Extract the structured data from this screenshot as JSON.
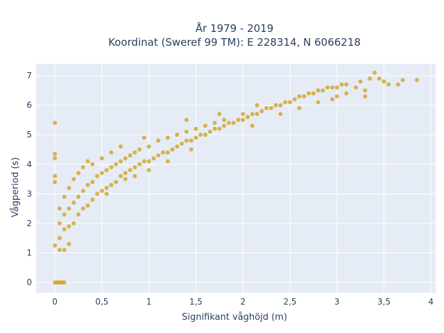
{
  "chart_data": {
    "type": "scatter",
    "title_lines": [
      "År 1979 - 2019",
      "Koordinat (Sweref 99 TM): E 228314, N 6066218"
    ],
    "xlabel": "Signifikant våghöjd (m)",
    "ylabel": "Vågperiod (s)",
    "xlim": [
      -0.2,
      4.05
    ],
    "ylim": [
      -0.35,
      7.4
    ],
    "x_ticks": [
      0,
      0.5,
      1,
      1.5,
      2,
      2.5,
      3,
      3.5,
      4
    ],
    "x_tick_labels": [
      "0",
      "0,5",
      "1",
      "1,5",
      "2",
      "2,5",
      "3",
      "3,5",
      "4"
    ],
    "y_ticks": [
      0,
      1,
      2,
      3,
      4,
      5,
      6,
      7
    ],
    "y_tick_labels": [
      "0",
      "1",
      "2",
      "3",
      "4",
      "5",
      "6",
      "7"
    ],
    "grid": true,
    "background": "#e5ecf6",
    "marker_color": "#d4a21f",
    "points": [
      [
        0.0,
        0.0
      ],
      [
        0.02,
        0.0
      ],
      [
        0.04,
        0.0
      ],
      [
        0.06,
        0.0
      ],
      [
        0.08,
        0.0
      ],
      [
        0.1,
        0.0
      ],
      [
        0.0,
        5.4
      ],
      [
        0.0,
        4.35
      ],
      [
        0.0,
        4.2
      ],
      [
        0.0,
        3.6
      ],
      [
        0.0,
        3.4
      ],
      [
        0.0,
        1.25
      ],
      [
        0.05,
        1.1
      ],
      [
        0.1,
        1.1
      ],
      [
        0.15,
        1.3
      ],
      [
        0.05,
        1.5
      ],
      [
        0.05,
        2.0
      ],
      [
        0.05,
        2.5
      ],
      [
        0.1,
        1.8
      ],
      [
        0.1,
        2.3
      ],
      [
        0.1,
        2.9
      ],
      [
        0.15,
        1.9
      ],
      [
        0.15,
        2.5
      ],
      [
        0.15,
        3.2
      ],
      [
        0.2,
        2.0
      ],
      [
        0.2,
        2.7
      ],
      [
        0.2,
        3.5
      ],
      [
        0.25,
        2.3
      ],
      [
        0.25,
        2.9
      ],
      [
        0.25,
        3.7
      ],
      [
        0.3,
        2.5
      ],
      [
        0.3,
        3.1
      ],
      [
        0.3,
        3.9
      ],
      [
        0.35,
        2.6
      ],
      [
        0.35,
        3.3
      ],
      [
        0.4,
        2.8
      ],
      [
        0.4,
        3.4
      ],
      [
        0.4,
        4.0
      ],
      [
        0.45,
        3.0
      ],
      [
        0.45,
        3.6
      ],
      [
        0.5,
        3.1
      ],
      [
        0.5,
        3.7
      ],
      [
        0.5,
        4.2
      ],
      [
        0.55,
        3.2
      ],
      [
        0.55,
        3.8
      ],
      [
        0.6,
        3.3
      ],
      [
        0.6,
        3.9
      ],
      [
        0.6,
        4.4
      ],
      [
        0.65,
        3.4
      ],
      [
        0.65,
        4.0
      ],
      [
        0.7,
        3.6
      ],
      [
        0.7,
        4.1
      ],
      [
        0.75,
        3.7
      ],
      [
        0.75,
        4.2
      ],
      [
        0.8,
        3.8
      ],
      [
        0.8,
        4.3
      ],
      [
        0.85,
        3.9
      ],
      [
        0.85,
        4.4
      ],
      [
        0.9,
        4.0
      ],
      [
        0.9,
        4.5
      ],
      [
        0.95,
        4.1
      ],
      [
        1.0,
        4.1
      ],
      [
        1.0,
        4.6
      ],
      [
        1.05,
        4.2
      ],
      [
        1.1,
        4.3
      ],
      [
        1.1,
        4.8
      ],
      [
        1.15,
        4.4
      ],
      [
        1.2,
        4.4
      ],
      [
        1.2,
        4.9
      ],
      [
        1.25,
        4.5
      ],
      [
        1.3,
        4.6
      ],
      [
        1.3,
        5.0
      ],
      [
        1.35,
        4.7
      ],
      [
        1.4,
        4.8
      ],
      [
        1.4,
        5.1
      ],
      [
        1.45,
        4.8
      ],
      [
        1.5,
        4.9
      ],
      [
        1.5,
        5.2
      ],
      [
        1.55,
        5.0
      ],
      [
        1.6,
        5.0
      ],
      [
        1.6,
        5.3
      ],
      [
        1.65,
        5.1
      ],
      [
        1.7,
        5.2
      ],
      [
        1.7,
        5.4
      ],
      [
        1.75,
        5.2
      ],
      [
        1.8,
        5.3
      ],
      [
        1.8,
        5.5
      ],
      [
        1.85,
        5.4
      ],
      [
        1.9,
        5.4
      ],
      [
        1.95,
        5.5
      ],
      [
        2.0,
        5.5
      ],
      [
        2.0,
        5.7
      ],
      [
        2.05,
        5.6
      ],
      [
        2.1,
        5.7
      ],
      [
        2.15,
        5.7
      ],
      [
        2.2,
        5.8
      ],
      [
        2.25,
        5.9
      ],
      [
        2.3,
        5.9
      ],
      [
        2.35,
        6.0
      ],
      [
        2.4,
        6.0
      ],
      [
        2.45,
        6.1
      ],
      [
        2.5,
        6.1
      ],
      [
        2.55,
        6.2
      ],
      [
        2.6,
        6.3
      ],
      [
        2.65,
        6.3
      ],
      [
        2.7,
        6.4
      ],
      [
        2.75,
        6.4
      ],
      [
        2.8,
        6.5
      ],
      [
        2.85,
        6.5
      ],
      [
        2.9,
        6.6
      ],
      [
        2.95,
        6.6
      ],
      [
        3.0,
        6.6
      ],
      [
        3.05,
        6.7
      ],
      [
        3.1,
        6.7
      ],
      [
        3.2,
        6.6
      ],
      [
        3.25,
        6.8
      ],
      [
        3.3,
        6.5
      ],
      [
        3.3,
        6.3
      ],
      [
        3.35,
        6.9
      ],
      [
        3.4,
        7.1
      ],
      [
        3.45,
        6.9
      ],
      [
        3.5,
        6.8
      ],
      [
        3.55,
        6.7
      ],
      [
        3.65,
        6.7
      ],
      [
        3.7,
        6.85
      ],
      [
        3.85,
        6.85
      ],
      [
        2.1,
        5.3
      ],
      [
        2.4,
        5.7
      ],
      [
        2.6,
        5.9
      ],
      [
        2.8,
        6.1
      ],
      [
        3.0,
        6.3
      ],
      [
        3.1,
        6.4
      ],
      [
        2.95,
        6.2
      ],
      [
        1.2,
        4.1
      ],
      [
        1.45,
        4.5
      ],
      [
        1.0,
        3.8
      ],
      [
        0.75,
        3.5
      ],
      [
        0.55,
        3.0
      ],
      [
        0.85,
        3.6
      ],
      [
        1.4,
        5.5
      ],
      [
        1.75,
        5.7
      ],
      [
        2.15,
        6.0
      ],
      [
        0.7,
        4.6
      ],
      [
        0.35,
        4.1
      ],
      [
        0.95,
        4.9
      ]
    ]
  }
}
